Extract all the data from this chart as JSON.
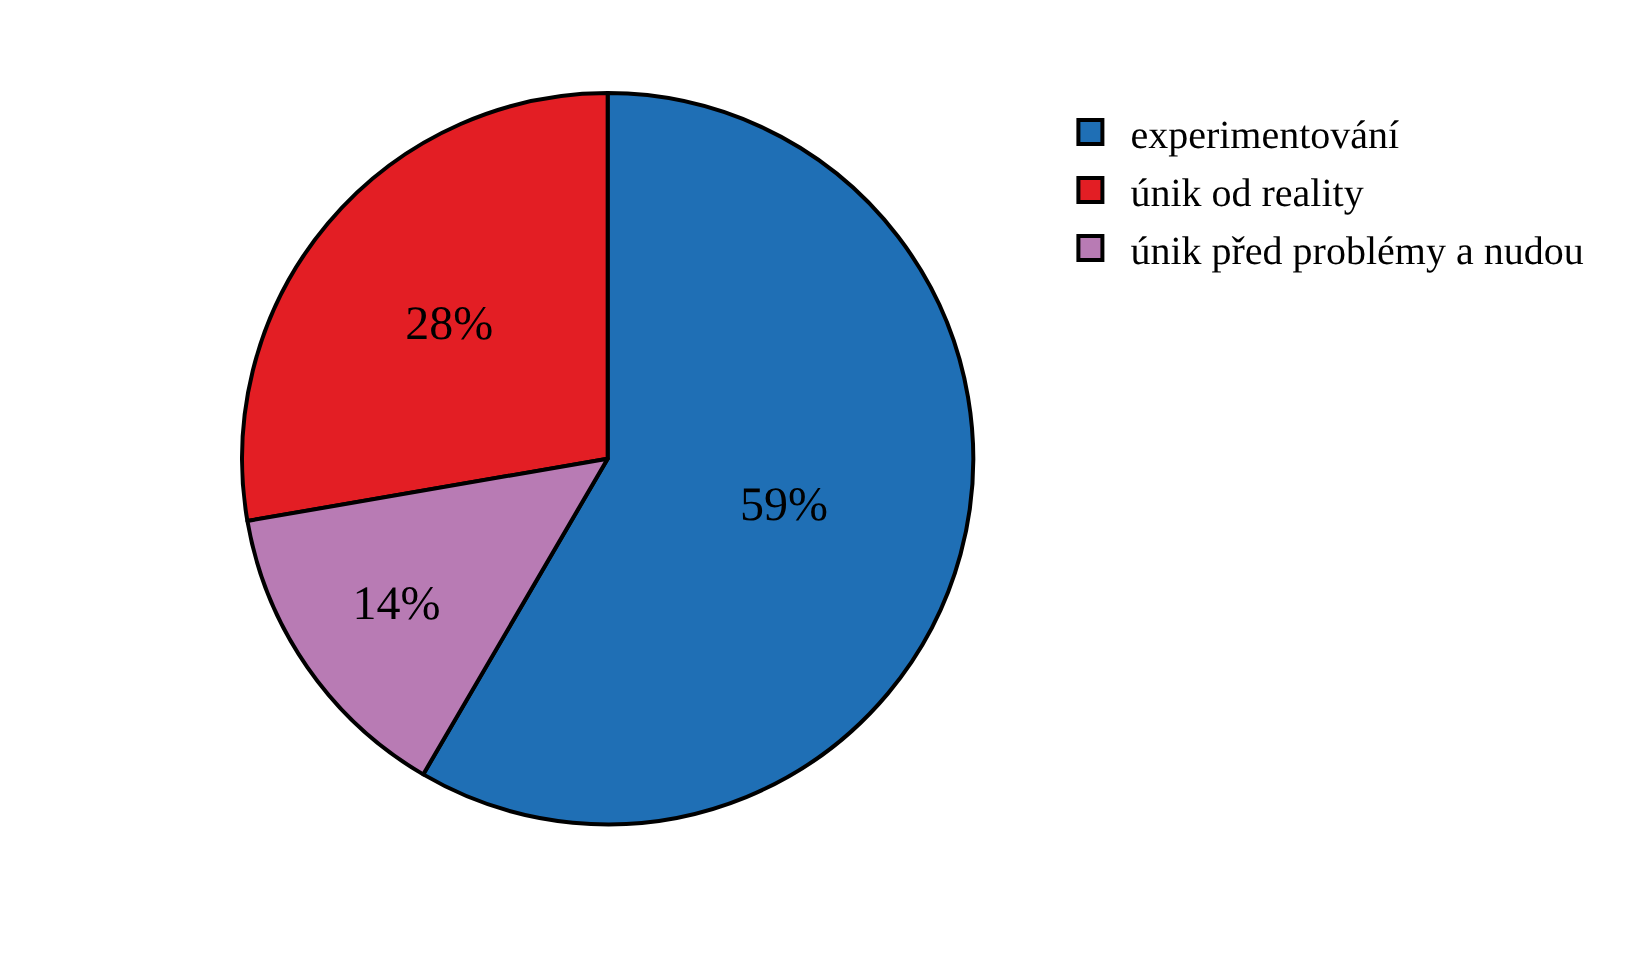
{
  "chart_data": {
    "type": "pie",
    "categories": [
      "experimentování",
      "únik od reality",
      "únik před problémy a nudou"
    ],
    "values": [
      59,
      28,
      14
    ],
    "value_labels": [
      "59%",
      "28%",
      "14%"
    ],
    "colors": [
      "#1f6fb5",
      "#e31e24",
      "#b87bb4"
    ],
    "legend": "top right"
  }
}
